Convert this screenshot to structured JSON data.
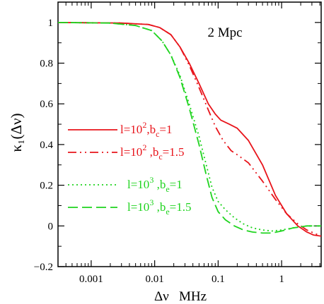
{
  "chart_data": {
    "type": "line",
    "annotation": "2 Mpc",
    "xlabel": "Δν   MHz",
    "ylabel": "κ₁(Δν)",
    "x_scale": "log",
    "xlim": [
      0.0003,
      4.2
    ],
    "ylim": [
      -0.2,
      1.1
    ],
    "x_ticks": [
      {
        "value": 0.001,
        "label": "0.001"
      },
      {
        "value": 0.01,
        "label": "0.01"
      },
      {
        "value": 0.1,
        "label": "0.1"
      },
      {
        "value": 1,
        "label": "1"
      }
    ],
    "y_ticks": [
      {
        "value": -0.2,
        "label": "−0.2"
      },
      {
        "value": 0,
        "label": "0"
      },
      {
        "value": 0.2,
        "label": "0.2"
      },
      {
        "value": 0.4,
        "label": "0.4"
      },
      {
        "value": 0.6,
        "label": "0.6"
      },
      {
        "value": 0.8,
        "label": "0.8"
      },
      {
        "value": 1,
        "label": "1"
      }
    ],
    "grid": false,
    "legend_position": "middle-left",
    "series": [
      {
        "name": "l=10², b_c=1",
        "legend_parts": [
          "l=10",
          "2",
          ",b",
          "c",
          "=1"
        ],
        "color": "#e8141b",
        "dash": "solid",
        "points": [
          [
            0.0003,
            1.0
          ],
          [
            0.003,
            0.997
          ],
          [
            0.008,
            0.99
          ],
          [
            0.012,
            0.975
          ],
          [
            0.018,
            0.94
          ],
          [
            0.025,
            0.88
          ],
          [
            0.035,
            0.8
          ],
          [
            0.05,
            0.7
          ],
          [
            0.07,
            0.6
          ],
          [
            0.09,
            0.55
          ],
          [
            0.11,
            0.52
          ],
          [
            0.15,
            0.5
          ],
          [
            0.2,
            0.48
          ],
          [
            0.3,
            0.42
          ],
          [
            0.5,
            0.3
          ],
          [
            0.8,
            0.15
          ],
          [
            1.2,
            0.06
          ],
          [
            1.8,
            0.0
          ],
          [
            2.5,
            -0.03
          ],
          [
            3.2,
            -0.045
          ],
          [
            4.2,
            -0.05
          ]
        ]
      },
      {
        "name": "l=10², b_c=1.5",
        "legend_parts": [
          "l=10",
          "2",
          " ,b",
          "c",
          "=1.5"
        ],
        "color": "#e8141b",
        "dash": "12,5,2,5,2,5",
        "points": [
          [
            0.0003,
            1.0
          ],
          [
            0.003,
            0.997
          ],
          [
            0.008,
            0.99
          ],
          [
            0.012,
            0.975
          ],
          [
            0.018,
            0.94
          ],
          [
            0.025,
            0.88
          ],
          [
            0.035,
            0.79
          ],
          [
            0.05,
            0.68
          ],
          [
            0.07,
            0.57
          ],
          [
            0.09,
            0.49
          ],
          [
            0.12,
            0.42
          ],
          [
            0.16,
            0.37
          ],
          [
            0.2,
            0.35
          ],
          [
            0.3,
            0.31
          ],
          [
            0.5,
            0.22
          ],
          [
            0.8,
            0.13
          ],
          [
            1.2,
            0.06
          ],
          [
            1.8,
            0.01
          ],
          [
            2.5,
            -0.02
          ],
          [
            3.5,
            -0.04
          ],
          [
            4.2,
            -0.05
          ]
        ]
      },
      {
        "name": "l=10³, b_e=1",
        "legend_parts": [
          "l=10",
          "3",
          " ,b",
          "e",
          "=1"
        ],
        "color": "#1fd41f",
        "dash": "2,4",
        "points": [
          [
            0.0003,
            1.0
          ],
          [
            0.002,
            0.997
          ],
          [
            0.005,
            0.985
          ],
          [
            0.009,
            0.96
          ],
          [
            0.013,
            0.91
          ],
          [
            0.018,
            0.84
          ],
          [
            0.025,
            0.74
          ],
          [
            0.035,
            0.6
          ],
          [
            0.05,
            0.44
          ],
          [
            0.065,
            0.3
          ],
          [
            0.08,
            0.19
          ],
          [
            0.1,
            0.12
          ],
          [
            0.13,
            0.08
          ],
          [
            0.18,
            0.04
          ],
          [
            0.25,
            0.01
          ],
          [
            0.35,
            -0.01
          ],
          [
            0.5,
            -0.02
          ],
          [
            0.7,
            -0.025
          ],
          [
            1.0,
            -0.02
          ],
          [
            1.5,
            -0.01
          ],
          [
            2.5,
            0.0
          ],
          [
            4.2,
            0.0
          ]
        ]
      },
      {
        "name": "l=10³, b_e=1.5",
        "legend_parts": [
          "l=10",
          "3",
          " ,b",
          "e",
          "=1.5"
        ],
        "color": "#1fd41f",
        "dash": "14,6",
        "points": [
          [
            0.0003,
            1.0
          ],
          [
            0.002,
            0.997
          ],
          [
            0.005,
            0.985
          ],
          [
            0.009,
            0.96
          ],
          [
            0.013,
            0.91
          ],
          [
            0.018,
            0.84
          ],
          [
            0.025,
            0.73
          ],
          [
            0.035,
            0.58
          ],
          [
            0.05,
            0.4
          ],
          [
            0.065,
            0.25
          ],
          [
            0.08,
            0.14
          ],
          [
            0.1,
            0.07
          ],
          [
            0.13,
            0.03
          ],
          [
            0.18,
            0.0
          ],
          [
            0.25,
            -0.02
          ],
          [
            0.35,
            -0.03
          ],
          [
            0.5,
            -0.035
          ],
          [
            0.7,
            -0.035
          ],
          [
            1.0,
            -0.025
          ],
          [
            1.5,
            -0.01
          ],
          [
            2.5,
            0.0
          ],
          [
            4.2,
            0.0
          ]
        ]
      }
    ]
  }
}
